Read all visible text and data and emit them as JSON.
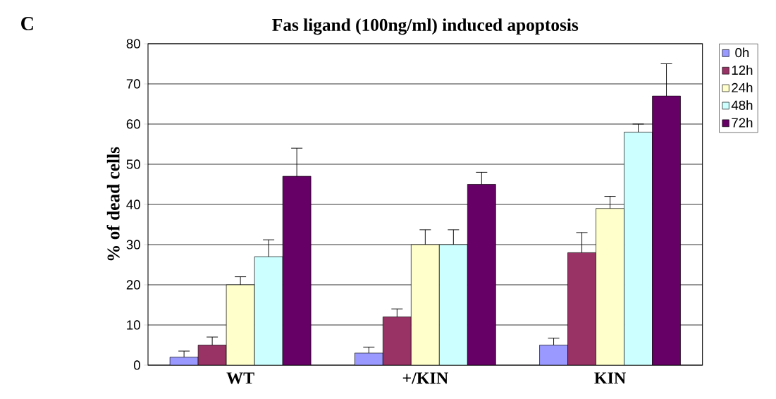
{
  "chart_data": {
    "type": "bar",
    "title": "Fas ligand (100ng/ml) induced apoptosis",
    "ylabel": "% of dead cells",
    "categories": [
      "WT",
      "+/KIN",
      "KIN"
    ],
    "series": [
      {
        "name": "0h",
        "color": "#9999ff",
        "values": [
          2,
          3,
          5
        ],
        "errors": [
          [
            2,
            3.5
          ],
          [
            3,
            4.5
          ],
          [
            5,
            6.7
          ]
        ]
      },
      {
        "name": "12h",
        "color": "#993366",
        "values": [
          5,
          12,
          28
        ],
        "errors": [
          [
            5,
            7
          ],
          [
            12,
            14
          ],
          [
            28,
            33
          ]
        ]
      },
      {
        "name": "24h",
        "color": "#ffffcc",
        "values": [
          20,
          30,
          39
        ],
        "errors": [
          [
            20,
            22
          ],
          [
            30,
            33.7
          ],
          [
            39,
            42
          ]
        ]
      },
      {
        "name": "48h",
        "color": "#ccffff",
        "values": [
          27,
          30,
          58
        ],
        "errors": [
          [
            27,
            31.2
          ],
          [
            30,
            33.7
          ],
          [
            58,
            60
          ]
        ]
      },
      {
        "name": "72h",
        "color": "#660066",
        "values": [
          47,
          45,
          67
        ],
        "errors": [
          [
            47,
            54
          ],
          [
            45,
            48
          ],
          [
            67,
            75
          ]
        ]
      }
    ],
    "ylim": [
      0,
      80
    ],
    "yticks": [
      0,
      10,
      20,
      30,
      40,
      50,
      60,
      70,
      80
    ],
    "grid": "y",
    "legend": "right",
    "annotations": [
      "C"
    ]
  }
}
